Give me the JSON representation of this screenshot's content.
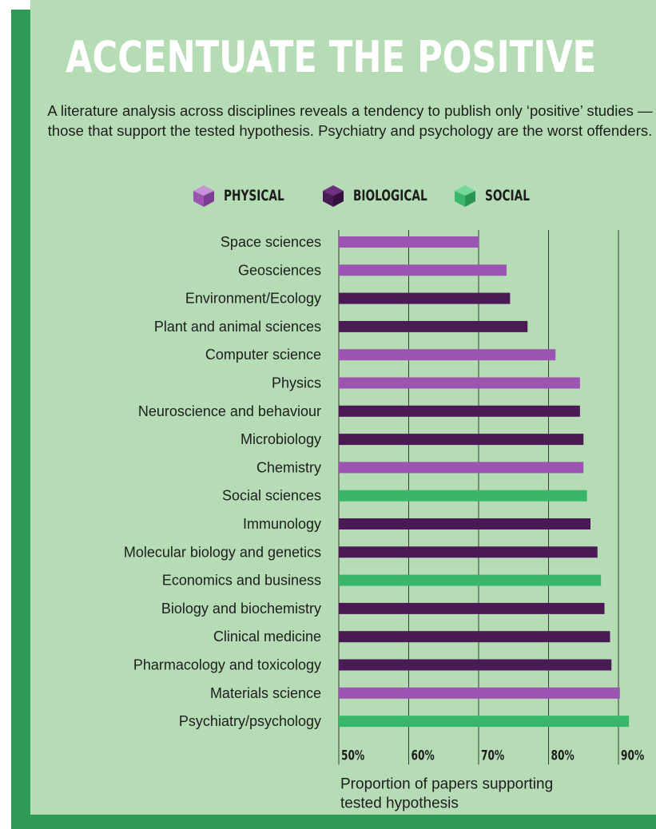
{
  "title": "ACCENTUATE THE POSITIVE",
  "subtitle": "A literature analysis across disciplines reveals a tendency to publish only ‘positive’ studies — those that support the tested hypothesis. Psychiatry and psychology are the worst offenders.",
  "colors": {
    "physical": "#9a55b0",
    "biological": "#4a1a55",
    "social": "#3ab66a",
    "background": "#b6dcb5",
    "accent_dark": "#2f9a57"
  },
  "legend": [
    {
      "label": "PHYSICAL",
      "key": "physical",
      "icon": "cube-icon"
    },
    {
      "label": "BIOLOGICAL",
      "key": "biological",
      "icon": "cube-icon"
    },
    {
      "label": "SOCIAL",
      "key": "social",
      "icon": "cube-icon"
    }
  ],
  "chart_data": {
    "type": "bar",
    "orientation": "horizontal",
    "categories": [
      "Space sciences",
      "Geosciences",
      "Environment/Ecology",
      "Plant and animal sciences",
      "Computer science",
      "Physics",
      "Neuroscience and behaviour",
      "Microbiology",
      "Chemistry",
      "Social sciences",
      "Immunology",
      "Molecular biology and genetics",
      "Economics and business",
      "Biology and biochemistry",
      "Clinical medicine",
      "Pharmacology and toxicology",
      "Materials science",
      "Psychiatry/psychology"
    ],
    "values": [
      70,
      74,
      74.5,
      77,
      81,
      84.5,
      84.5,
      85,
      85,
      85.5,
      86,
      87,
      87.5,
      88,
      88.8,
      89,
      90.2,
      91.5
    ],
    "groups": [
      "physical",
      "physical",
      "biological",
      "biological",
      "physical",
      "physical",
      "biological",
      "biological",
      "physical",
      "social",
      "biological",
      "biological",
      "social",
      "biological",
      "biological",
      "biological",
      "physical",
      "social"
    ],
    "xlim": [
      50,
      92
    ],
    "xticks": [
      50,
      60,
      70,
      80,
      90
    ],
    "xtick_labels": [
      "50%",
      "60%",
      "70%",
      "80%",
      "90%"
    ],
    "xlabel": "Proportion of papers supporting tested hypothesis",
    "grid": "vertical lines at ticks"
  }
}
